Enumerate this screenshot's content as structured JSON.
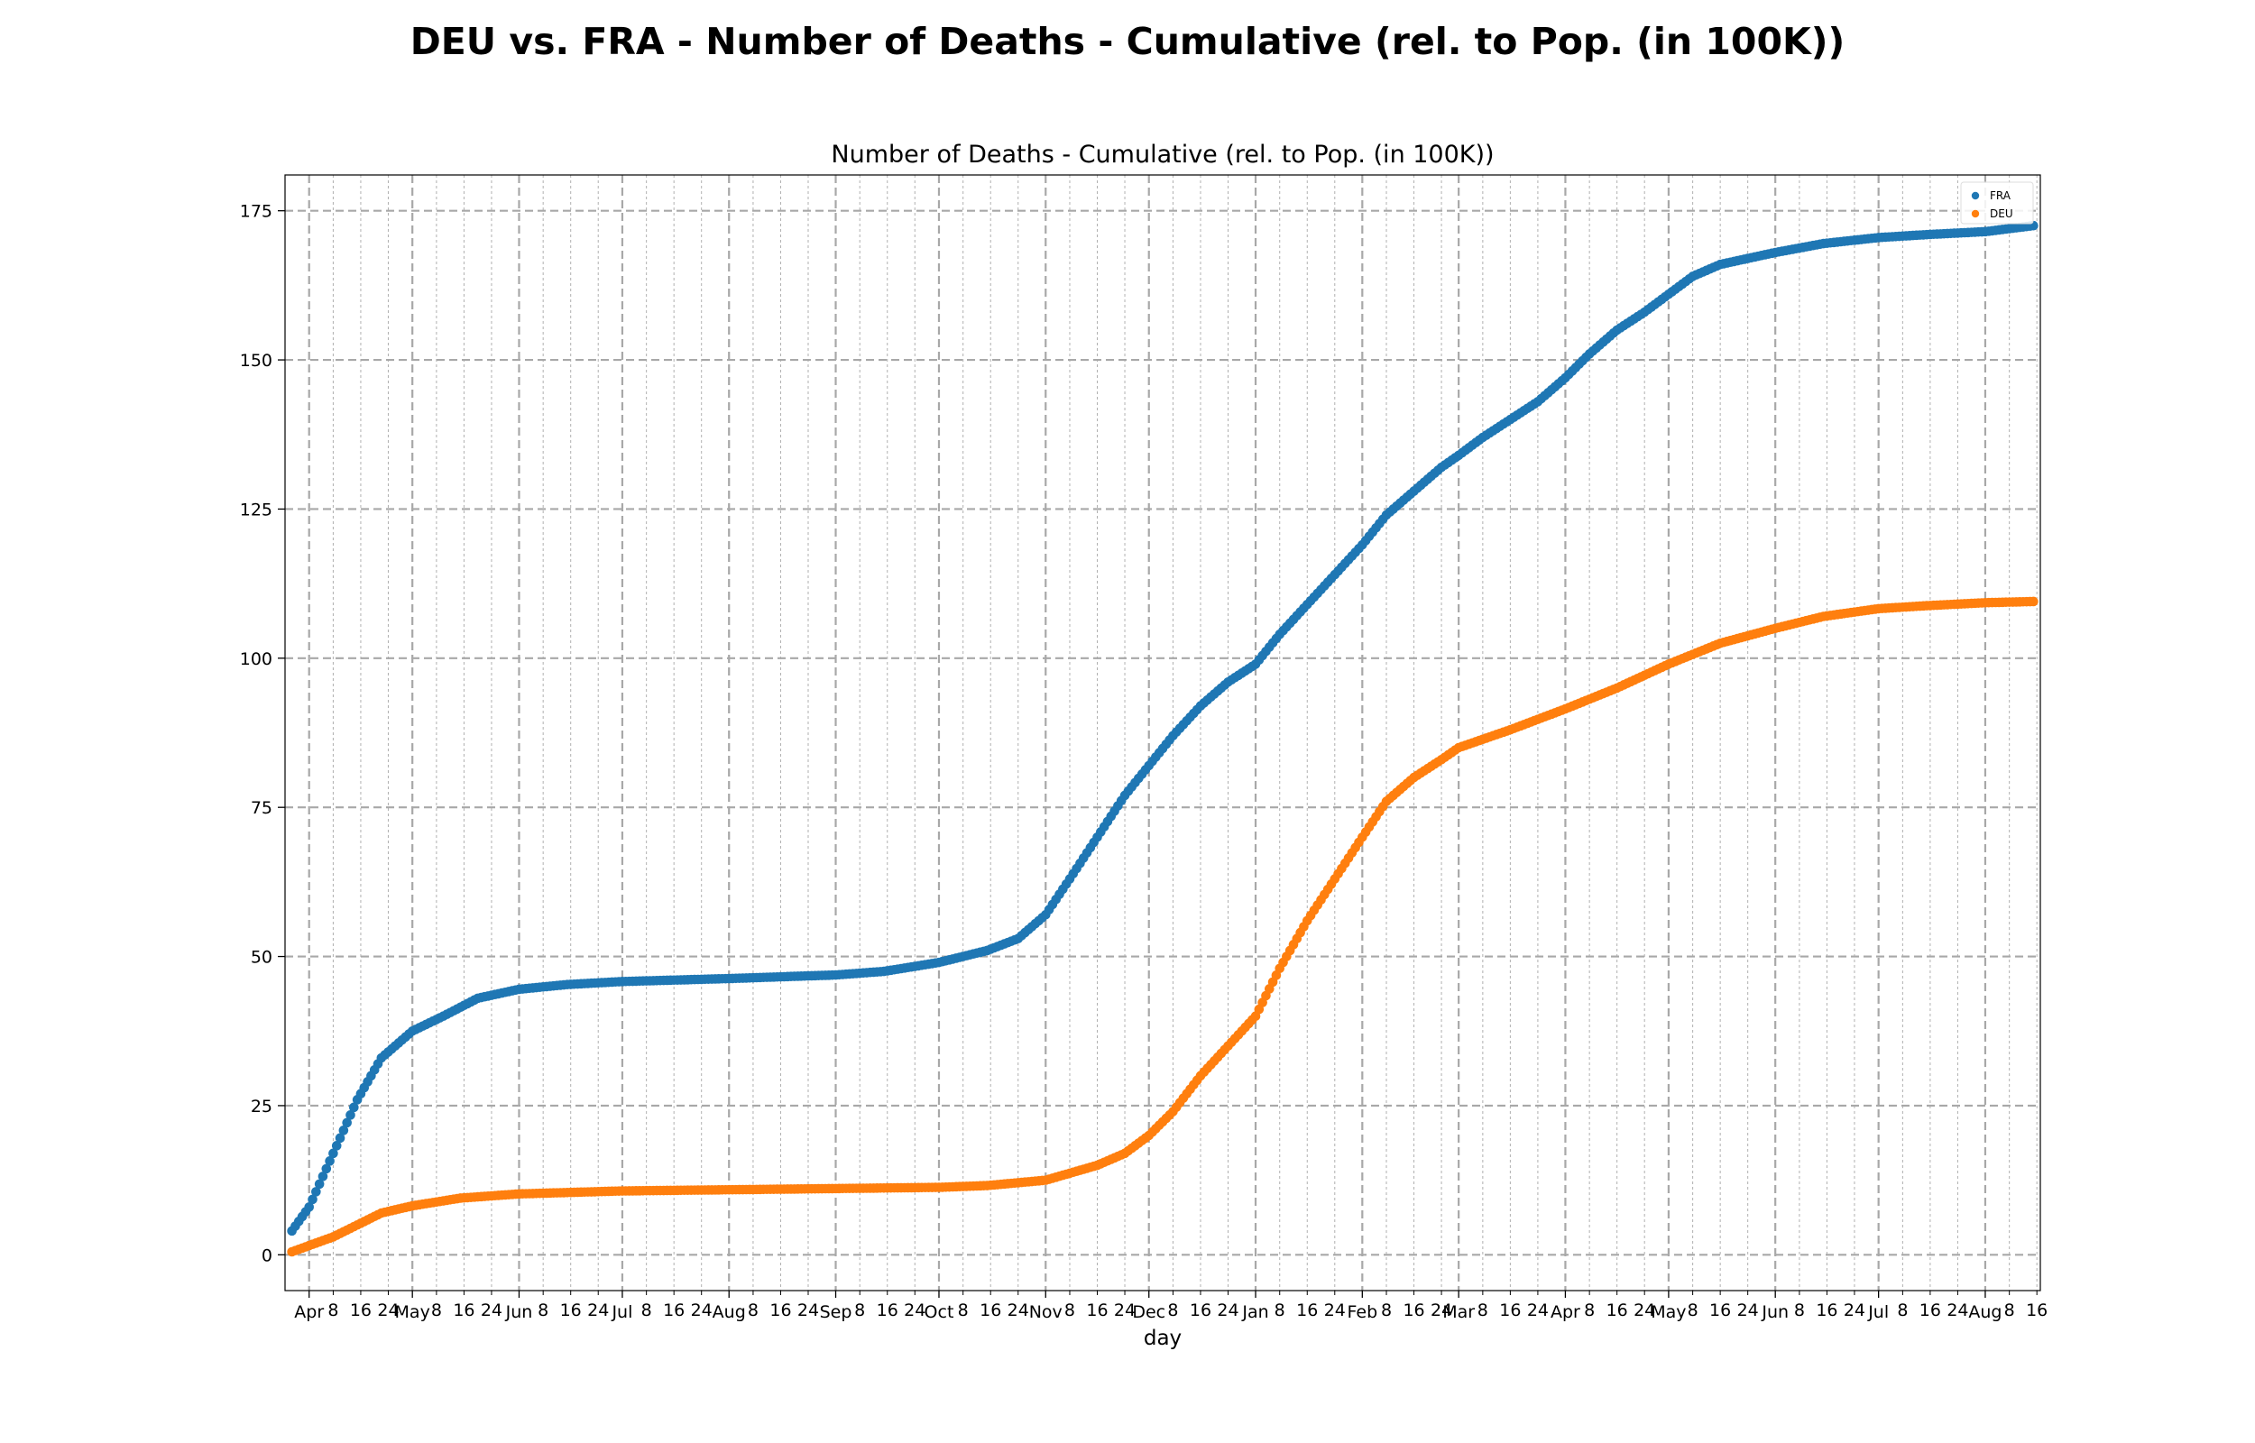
{
  "figure": {
    "suptitle": "DEU vs. FRA - Number of Deaths - Cumulative (rel. to Pop. (in 100K))"
  },
  "chart_data": {
    "type": "scatter",
    "title": "Number of Deaths - Cumulative (rel. to Pop. (in 100K))",
    "xlabel": "day",
    "ylabel": "",
    "x_start_date": "2020-03-27",
    "x_end_date": "2021-08-15",
    "xlim": [
      "2020-03-25",
      "2021-08-17"
    ],
    "ylim": [
      -6,
      181
    ],
    "yticks": [
      0,
      25,
      50,
      75,
      100,
      125,
      150,
      175
    ],
    "x_major_ticks": [
      {
        "date": "2020-04-01",
        "label": "Apr"
      },
      {
        "date": "2020-05-01",
        "label": "May"
      },
      {
        "date": "2020-06-01",
        "label": "Jun"
      },
      {
        "date": "2020-07-01",
        "label": "Jul"
      },
      {
        "date": "2020-08-01",
        "label": "Aug"
      },
      {
        "date": "2020-09-01",
        "label": "Sep"
      },
      {
        "date": "2020-10-01",
        "label": "Oct"
      },
      {
        "date": "2020-11-01",
        "label": "Nov"
      },
      {
        "date": "2020-12-01",
        "label": "Dec"
      },
      {
        "date": "2021-01-01",
        "label": "Jan"
      },
      {
        "date": "2021-02-01",
        "label": "Feb"
      },
      {
        "date": "2021-03-01",
        "label": "Mar"
      },
      {
        "date": "2021-04-01",
        "label": "Apr"
      },
      {
        "date": "2021-05-01",
        "label": "May"
      },
      {
        "date": "2021-06-01",
        "label": "Jun"
      },
      {
        "date": "2021-07-01",
        "label": "Jul"
      },
      {
        "date": "2021-08-01",
        "label": "Aug"
      }
    ],
    "x_minor_tick_labels": [
      "8",
      "16",
      "24"
    ],
    "grid": true,
    "legend_position": "top-right",
    "series": [
      {
        "name": "FRA",
        "color": "#1f77b4",
        "x": [
          "2020-03-27",
          "2020-04-01",
          "2020-04-08",
          "2020-04-15",
          "2020-04-22",
          "2020-05-01",
          "2020-05-10",
          "2020-05-20",
          "2020-06-01",
          "2020-06-15",
          "2020-07-01",
          "2020-08-01",
          "2020-09-01",
          "2020-09-15",
          "2020-10-01",
          "2020-10-15",
          "2020-10-24",
          "2020-11-01",
          "2020-11-08",
          "2020-11-16",
          "2020-11-24",
          "2020-12-01",
          "2020-12-08",
          "2020-12-16",
          "2020-12-24",
          "2021-01-01",
          "2021-01-08",
          "2021-01-16",
          "2021-01-24",
          "2021-02-01",
          "2021-02-08",
          "2021-02-16",
          "2021-02-24",
          "2021-03-01",
          "2021-03-08",
          "2021-03-16",
          "2021-03-24",
          "2021-04-01",
          "2021-04-08",
          "2021-04-16",
          "2021-04-24",
          "2021-05-01",
          "2021-05-08",
          "2021-05-16",
          "2021-05-24",
          "2021-06-01",
          "2021-06-15",
          "2021-07-01",
          "2021-07-15",
          "2021-08-01",
          "2021-08-15"
        ],
        "y": [
          4,
          8,
          17,
          26,
          33,
          37.5,
          40,
          43,
          44.5,
          45.3,
          45.8,
          46.3,
          46.9,
          47.5,
          49,
          51,
          53,
          57,
          63,
          70,
          77,
          82,
          87,
          92,
          96,
          99,
          104,
          109,
          114,
          119,
          124,
          128,
          132,
          134,
          137,
          140,
          143,
          147,
          151,
          155,
          158,
          161,
          164,
          166,
          167,
          168,
          169.5,
          170.5,
          171,
          171.5,
          172.5
        ]
      },
      {
        "name": "DEU",
        "color": "#ff7f0e",
        "x": [
          "2020-03-27",
          "2020-04-08",
          "2020-04-15",
          "2020-04-22",
          "2020-05-01",
          "2020-05-15",
          "2020-06-01",
          "2020-07-01",
          "2020-08-01",
          "2020-09-01",
          "2020-10-01",
          "2020-10-15",
          "2020-11-01",
          "2020-11-16",
          "2020-11-24",
          "2020-12-01",
          "2020-12-08",
          "2020-12-16",
          "2020-12-24",
          "2021-01-01",
          "2021-01-08",
          "2021-01-16",
          "2021-01-24",
          "2021-02-01",
          "2021-02-08",
          "2021-02-16",
          "2021-02-24",
          "2021-03-01",
          "2021-03-16",
          "2021-04-01",
          "2021-04-16",
          "2021-05-01",
          "2021-05-16",
          "2021-06-01",
          "2021-06-15",
          "2021-07-01",
          "2021-07-15",
          "2021-08-01",
          "2021-08-15"
        ],
        "y": [
          0.5,
          3,
          5,
          7,
          8.2,
          9.5,
          10.2,
          10.7,
          10.9,
          11.1,
          11.3,
          11.6,
          12.5,
          15,
          17,
          20,
          24,
          30,
          35,
          40,
          48,
          56,
          63,
          70,
          76,
          80,
          83,
          85,
          88,
          91.5,
          95,
          99,
          102.5,
          105,
          107,
          108.3,
          108.8,
          109.3,
          109.5
        ]
      }
    ]
  }
}
